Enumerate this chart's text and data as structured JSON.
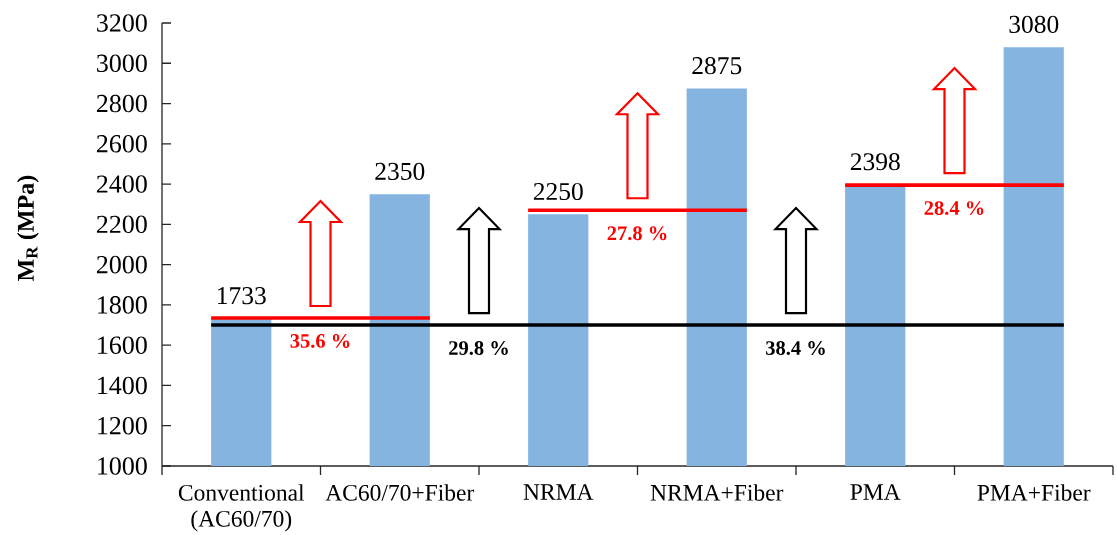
{
  "chart_data": {
    "type": "bar",
    "categories": [
      "Conventional (AC60/70)",
      "AC60/70+Fiber",
      "NRMA",
      "NRMA+Fiber",
      "PMA",
      "PMA+Fiber"
    ],
    "values": [
      1733,
      2350,
      2250,
      2875,
      2398,
      3080
    ],
    "color": "#85b4e0",
    "ylabel": "M$_{R}$ (MPa)",
    "ylim": [
      1000,
      3200
    ],
    "yticks": [
      1000,
      1200,
      1400,
      1600,
      1800,
      2000,
      2200,
      2400,
      2600,
      2800,
      3000,
      3200
    ],
    "data_labels": true,
    "ref_lines": [
      {
        "axis": "y",
        "value": 1700,
        "color": "#000000"
      },
      {
        "axis": "y",
        "value": 1735,
        "color": "#ff0000"
      },
      {
        "axis": "y",
        "value": 2270,
        "color": "#ff0000"
      },
      {
        "axis": "y",
        "value": 2395,
        "color": "#ff0000"
      }
    ],
    "annotations": [
      "35.6 %",
      "29.8 %",
      "27.8 %",
      "38.4 %",
      "28.4 %"
    ]
  }
}
